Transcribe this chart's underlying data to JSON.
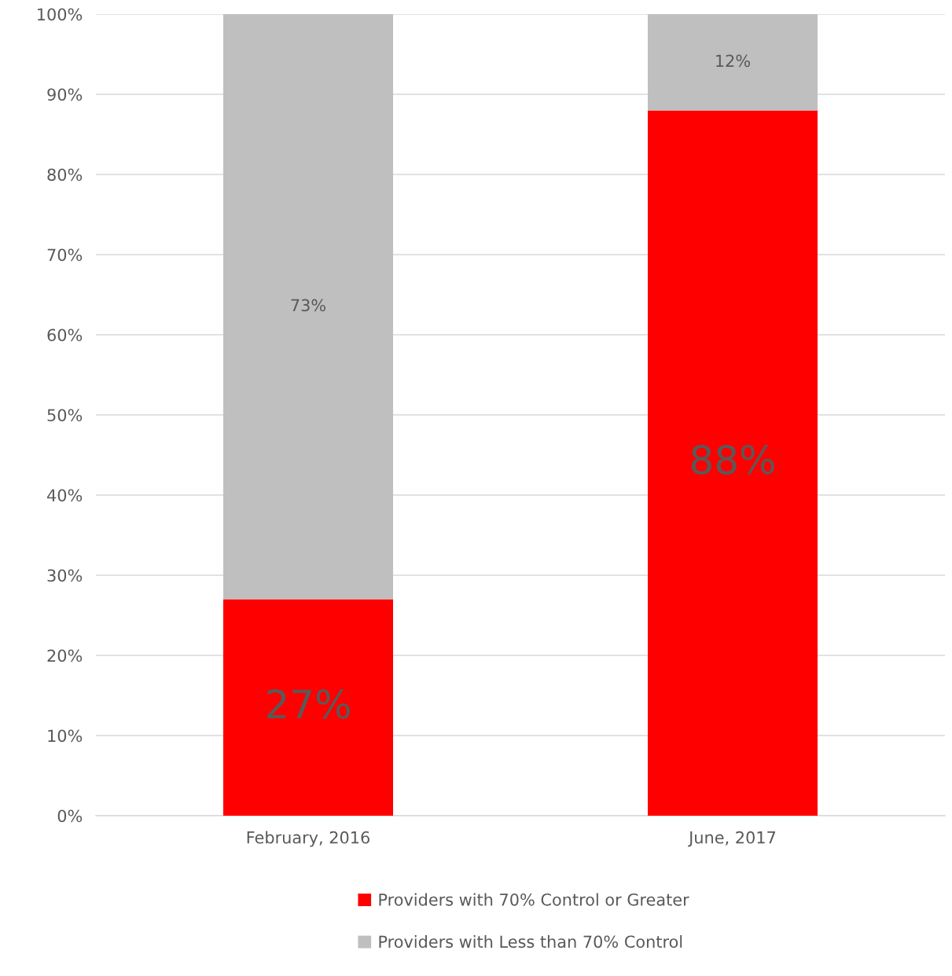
{
  "chart_data": {
    "type": "bar",
    "stacked": true,
    "categories": [
      "February, 2016",
      "June, 2017"
    ],
    "series": [
      {
        "name": "Providers with 70% Control or Greater",
        "color": "#ff0000",
        "values": [
          27,
          88
        ],
        "value_labels": [
          "27%",
          "88%"
        ]
      },
      {
        "name": "Providers with Less than 70% Control",
        "color": "#bfbfbf",
        "values": [
          73,
          12
        ],
        "value_labels": [
          "73%",
          "12%"
        ]
      }
    ],
    "ylim": [
      0,
      100
    ],
    "yticks": [
      {
        "value": 0,
        "label": "0%"
      },
      {
        "value": 10,
        "label": "10%"
      },
      {
        "value": 20,
        "label": "20%"
      },
      {
        "value": 30,
        "label": "30%"
      },
      {
        "value": 40,
        "label": "40%"
      },
      {
        "value": 50,
        "label": "50%"
      },
      {
        "value": 60,
        "label": "60%"
      },
      {
        "value": 70,
        "label": "70%"
      },
      {
        "value": 80,
        "label": "80%"
      },
      {
        "value": 90,
        "label": "90%"
      },
      {
        "value": 100,
        "label": "100%"
      }
    ],
    "grid": "y",
    "legend": "bottom"
  }
}
